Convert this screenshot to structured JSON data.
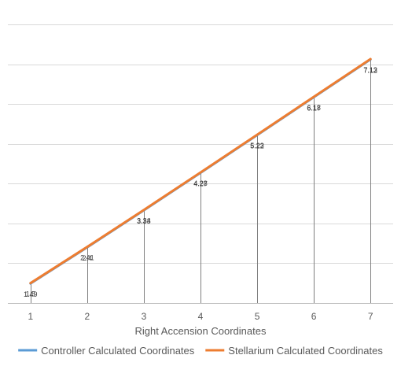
{
  "chart_data": {
    "type": "line",
    "title": "",
    "xlabel": "Right Accension Coordinates",
    "ylabel": "",
    "x": [
      1,
      2,
      3,
      4,
      5,
      6,
      7
    ],
    "xlim": [
      0.6,
      7.4
    ],
    "ylim": [
      1,
      8
    ],
    "y_gridlines": [
      1,
      2,
      3,
      4,
      5,
      6,
      7,
      8
    ],
    "y_tick_labels_shown": false,
    "grid": true,
    "drop_lines": true,
    "legend_position": "bottom",
    "series": [
      {
        "name": "Controller Calculated Coordinates",
        "values": [
          1.49,
          2.4,
          3.33,
          4.27,
          5.22,
          6.17,
          7.12
        ],
        "labels": [
          "1.49",
          "2.4",
          "3.33",
          "4.27",
          "5.22",
          "6.17",
          "7.12"
        ],
        "color": "#5b9bd5"
      },
      {
        "name": "Stellarium Calculated Coordinates",
        "values": [
          1.5,
          2.41,
          3.34,
          4.28,
          5.23,
          6.18,
          7.13
        ],
        "labels": [
          "1.5",
          "2.41",
          "3.34",
          "4.28",
          "5.23",
          "6.18",
          "7.13"
        ],
        "color": "#ed7d31"
      }
    ]
  }
}
